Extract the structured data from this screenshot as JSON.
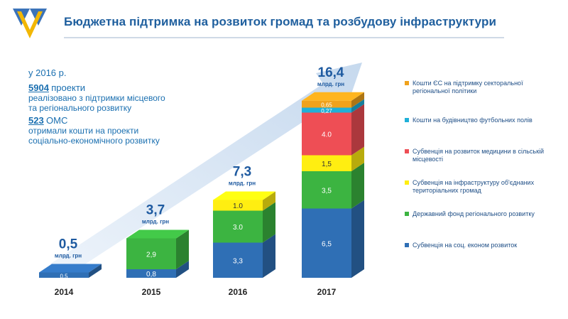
{
  "header": {
    "title": "Бюджетна підтримка на розвиток громад та розбудову інфраструктури"
  },
  "summary": {
    "year_line": "у 2016 р.",
    "projects_count": "5904",
    "projects_unit": "проекти",
    "projects_text": "реалізовано з підтримки місцевого та регіонального розвитку",
    "oms_count": "523",
    "oms_unit": "ОМС",
    "oms_text": "отримали кошти на проекти соціально-економічного розвитку"
  },
  "chart_data": {
    "type": "bar",
    "stacked": true,
    "categories": [
      "2014",
      "2015",
      "2016",
      "2017"
    ],
    "series": [
      {
        "name": "Субвенція на соц. економ розвиток",
        "color": "#2f6fb5",
        "values": [
          0.5,
          0.8,
          3.3,
          6.5
        ],
        "labels": [
          "0,5",
          "0,8",
          "3,3",
          "6,5"
        ]
      },
      {
        "name": "Державний фонд регіонального розвитку",
        "color": "#3cb441",
        "values": [
          0,
          2.9,
          3.0,
          3.5
        ],
        "labels": [
          "",
          "2,9",
          "3.0",
          "3,5"
        ]
      },
      {
        "name": "Субвенція на інфраструктуру об'єднаних територіальних громад",
        "color": "#ffee11",
        "values": [
          0,
          0,
          1.0,
          1.5
        ],
        "labels": [
          "",
          "",
          "1.0",
          "1,5"
        ]
      },
      {
        "name": "Субвенція на розвиток медицини в сільській місцевості",
        "color": "#ee4e55",
        "values": [
          0,
          0,
          0,
          4.0
        ],
        "labels": [
          "",
          "",
          "",
          "4.0"
        ]
      },
      {
        "name": "Кошти на будівництво футбольних полів",
        "color": "#1fb0d8",
        "values": [
          0,
          0,
          0,
          0.27
        ],
        "labels": [
          "",
          "",
          "",
          "0,27"
        ]
      },
      {
        "name": "Кошти ЄС на підтримку секторальної регіональної політики",
        "color": "#f0a21c",
        "values": [
          0,
          0,
          0,
          0.65
        ],
        "labels": [
          "",
          "",
          "",
          "0,65"
        ]
      }
    ],
    "totals": [
      "0,5",
      "3,7",
      "7,3",
      "16,4"
    ],
    "total_unit": "млрд. грн",
    "legend_position": "right",
    "legend_order": [
      5,
      4,
      3,
      2,
      1,
      0
    ]
  }
}
